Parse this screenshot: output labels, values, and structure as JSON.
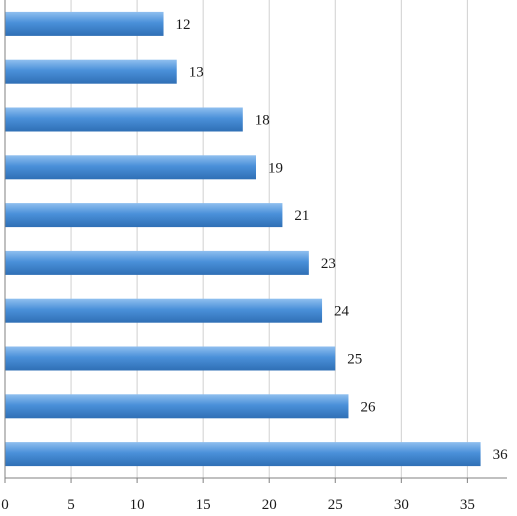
{
  "chart_data": {
    "type": "bar",
    "orientation": "horizontal",
    "title": "",
    "xlabel": "",
    "ylabel": "",
    "values": [
      12,
      13,
      18,
      19,
      21,
      23,
      24,
      25,
      26,
      36
    ],
    "data_labels": [
      "12",
      "13",
      "18",
      "19",
      "21",
      "23",
      "24",
      "25",
      "26",
      "36"
    ],
    "x_ticks": [
      0,
      5,
      10,
      15,
      20,
      25,
      30,
      35
    ],
    "x_tick_labels": [
      "0",
      "5",
      "10",
      "15",
      "20",
      "25",
      "30",
      "35"
    ],
    "xlim": [
      0,
      38
    ],
    "grid": "vertical",
    "legend": "none",
    "category_labels_visible": false
  },
  "colors": {
    "bar_light": "#8fbfef",
    "bar": "#4a90d9",
    "bar_dark": "#2f6fb5",
    "grid": "#d0d0d0",
    "axis": "#808080",
    "text": "#1a1a1a"
  }
}
